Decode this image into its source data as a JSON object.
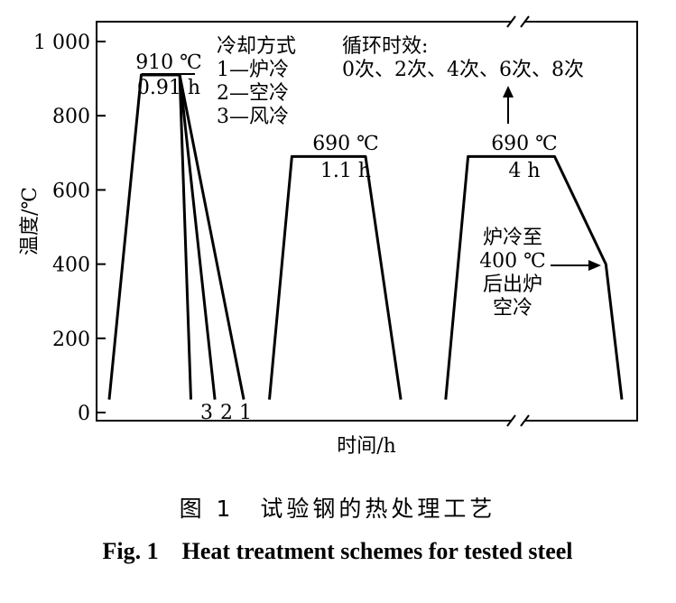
{
  "chart_data": {
    "type": "line",
    "title": "",
    "xlabel": "时间/h",
    "ylabel": "温度/℃",
    "ylim": [
      0,
      1000
    ],
    "y_ticks": [
      0,
      200,
      400,
      600,
      800,
      1000
    ],
    "y_tick_labels": [
      "0",
      "200",
      "400",
      "600",
      "800",
      "1 000"
    ],
    "x_axis_break": true,
    "grid": false,
    "series": [
      {
        "name": "1—炉冷",
        "points": [
          [
            0.0,
            35
          ],
          [
            1.0,
            910
          ],
          [
            2.2,
            910
          ],
          [
            4.2,
            35
          ]
        ]
      },
      {
        "name": "2—空冷",
        "points": [
          [
            2.2,
            910
          ],
          [
            3.3,
            35
          ]
        ]
      },
      {
        "name": "3—风冷",
        "points": [
          [
            2.2,
            910
          ],
          [
            2.55,
            35
          ]
        ]
      },
      {
        "name": "690℃ 1.1 h",
        "points": [
          [
            5.0,
            35
          ],
          [
            5.7,
            690
          ],
          [
            8.0,
            690
          ],
          [
            9.1,
            35
          ]
        ]
      },
      {
        "name": "690℃ 4 h 循环时效",
        "points": [
          [
            10.5,
            35
          ],
          [
            11.2,
            690
          ],
          [
            13.9,
            690
          ],
          [
            15.5,
            400
          ],
          [
            16.0,
            35
          ]
        ]
      }
    ],
    "annotations": {
      "austenitize_temp": "910 ℃",
      "austenitize_time": "0.91 h",
      "cooling_title": "冷却方式",
      "cooling_1": "1—炉冷",
      "cooling_2": "2—空冷",
      "cooling_3": "3—风冷",
      "curve_label_3": "3",
      "curve_label_2": "2",
      "curve_label_1": "1",
      "temper1_temp": "690 ℃",
      "temper1_time": "1.1 h",
      "aging_title": "循环时效:",
      "aging_counts": "0次、2次、4次、6次、8次",
      "temper2_temp": "690 ℃",
      "temper2_time": "4 h",
      "furnace_note_1": "炉冷至",
      "furnace_note_2": "400 ℃",
      "furnace_note_3": "后出炉",
      "furnace_note_4": "空冷"
    }
  },
  "caption": {
    "zh": "图 1　试验钢的热处理工艺",
    "en": "Fig. 1　Heat treatment schemes for tested steel"
  }
}
